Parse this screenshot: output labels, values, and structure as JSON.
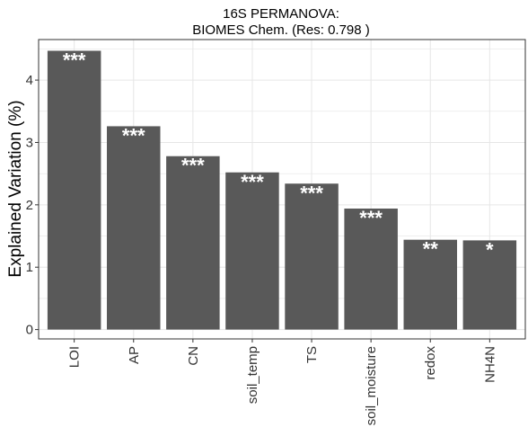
{
  "colors": {
    "bar": "#595959",
    "grid": "#e6e6e6",
    "axis": "#333333",
    "label": "#ffffff"
  },
  "chart_data": {
    "type": "bar",
    "title": "16S PERMANOVA:",
    "subtitle": "BIOMES Chem. (Res:  0.798 )",
    "xlabel": "",
    "ylabel": "Explained Variation (%)",
    "ylim": [
      -0.15,
      4.65
    ],
    "yticks": [
      0,
      1,
      2,
      3,
      4
    ],
    "grid": true,
    "categories": [
      "LOI",
      "AP",
      "CN",
      "soil_temp",
      "TS",
      "soil_moisture",
      "redox",
      "NH4N"
    ],
    "values": [
      4.47,
      3.26,
      2.78,
      2.52,
      2.34,
      1.94,
      1.44,
      1.43
    ],
    "labels": [
      "***",
      "***",
      "***",
      "***",
      "***",
      "***",
      "**",
      "*"
    ]
  }
}
